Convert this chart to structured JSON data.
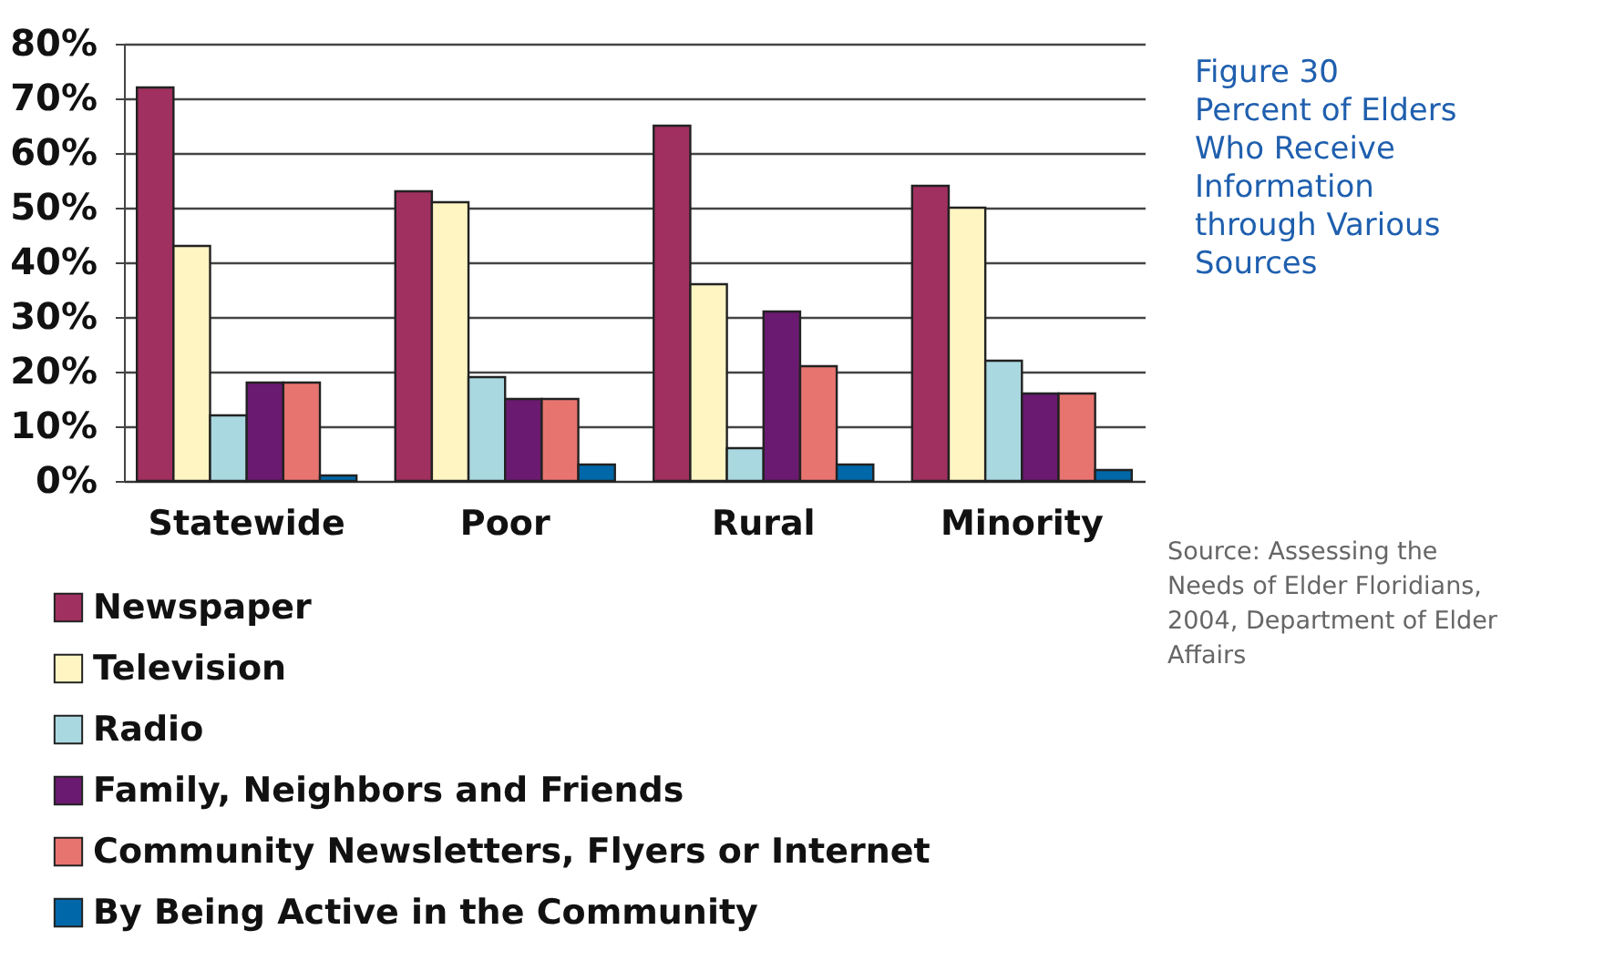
{
  "chart_data": {
    "type": "bar",
    "title": "Figure 30",
    "subtitle": "Percent of Elders Who Receive Information through Various Sources",
    "categories": [
      "Statewide",
      "Poor",
      "Rural",
      "Minority"
    ],
    "series": [
      {
        "name": "Newspaper",
        "color": "#a0305f",
        "values": [
          72,
          53,
          65,
          54
        ]
      },
      {
        "name": "Television",
        "color": "#fff5c3",
        "values": [
          43,
          51,
          36,
          50
        ]
      },
      {
        "name": "Radio",
        "color": "#aad8e0",
        "values": [
          12,
          19,
          6,
          22
        ]
      },
      {
        "name": "Family, Neighbors and Friends",
        "color": "#6a1a70",
        "values": [
          18,
          15,
          31,
          16
        ]
      },
      {
        "name": "Community Newsletters, Flyers or Internet",
        "color": "#e87470",
        "values": [
          18,
          15,
          21,
          16
        ]
      },
      {
        "name": "By Being Active in the Community",
        "color": "#0067a8",
        "values": [
          1,
          3,
          3,
          2
        ]
      }
    ],
    "ylim": [
      0,
      80
    ],
    "yticks": [
      {
        "value": 0,
        "label": "0%"
      },
      {
        "value": 10,
        "label": "10%"
      },
      {
        "value": 20,
        "label": "20%"
      },
      {
        "value": 30,
        "label": "30%"
      },
      {
        "value": 40,
        "label": "40%"
      },
      {
        "value": 50,
        "label": "50%"
      },
      {
        "value": 60,
        "label": "60%"
      },
      {
        "value": 70,
        "label": "70%"
      },
      {
        "value": 80,
        "label": "80%"
      }
    ],
    "grid": "y",
    "legend": "bottom left",
    "annotations": [
      "Source: Assessing the Needs of Elder Floridians, 2004, Department of Elder Affairs"
    ]
  }
}
